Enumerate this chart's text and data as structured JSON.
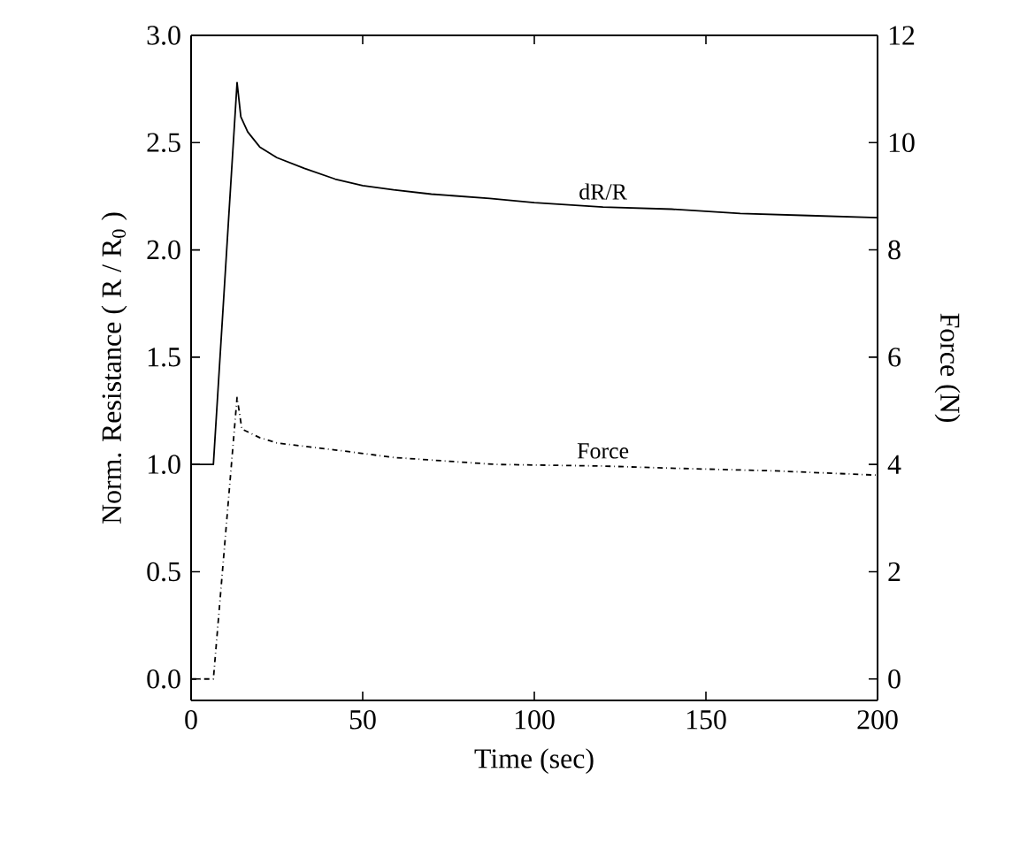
{
  "chart_data": {
    "type": "line",
    "xlabel": "Time (sec)",
    "ylabel": "Norm. Resistance ( R / R$_{0}$ )",
    "y2label": "Force (N)",
    "series": [
      {
        "name": "dR/R",
        "color": "#000000",
        "line_style": "solid",
        "x": [
          0,
          6.5,
          13.4,
          14.5,
          16.5,
          20,
          25,
          33,
          42,
          50,
          59,
          70,
          87,
          100,
          120,
          140,
          160,
          180,
          200
        ],
        "values": [
          1.0,
          1.0,
          2.78,
          2.62,
          2.55,
          2.48,
          2.43,
          2.38,
          2.33,
          2.3,
          2.28,
          2.26,
          2.24,
          2.22,
          2.2,
          2.19,
          2.17,
          2.16,
          2.15
        ]
      },
      {
        "name": "Force",
        "color": "#000000",
        "line_style": "dashdot",
        "axis": "y2",
        "x": [
          0,
          6.5,
          13.4,
          14.8,
          20,
          25,
          42,
          59,
          88.7,
          120,
          140,
          170,
          200
        ],
        "values": [
          0,
          0,
          5.25,
          4.66,
          4.5,
          4.4,
          4.27,
          4.13,
          4.0,
          3.97,
          3.93,
          3.88,
          3.8
        ]
      }
    ],
    "xlim": [
      0,
      200
    ],
    "xticks": [
      0,
      50,
      100,
      150,
      200
    ],
    "ylim": [
      -0.1,
      3.0
    ],
    "yticks": [
      {
        "value": 0,
        "label": "0.0"
      },
      {
        "value": 0.5,
        "label": "0.5"
      },
      {
        "value": 1,
        "label": "1.0"
      },
      {
        "value": 1.5,
        "label": "1.5"
      },
      {
        "value": 2,
        "label": "2.0"
      },
      {
        "value": 2.5,
        "label": "2.5"
      },
      {
        "value": 3,
        "label": "3.0"
      }
    ],
    "y2lim": [
      -0.4,
      12
    ],
    "y2ticks": [
      0,
      2,
      4,
      6,
      8,
      10,
      12
    ],
    "grid": false,
    "legend": false,
    "marker": "none"
  }
}
